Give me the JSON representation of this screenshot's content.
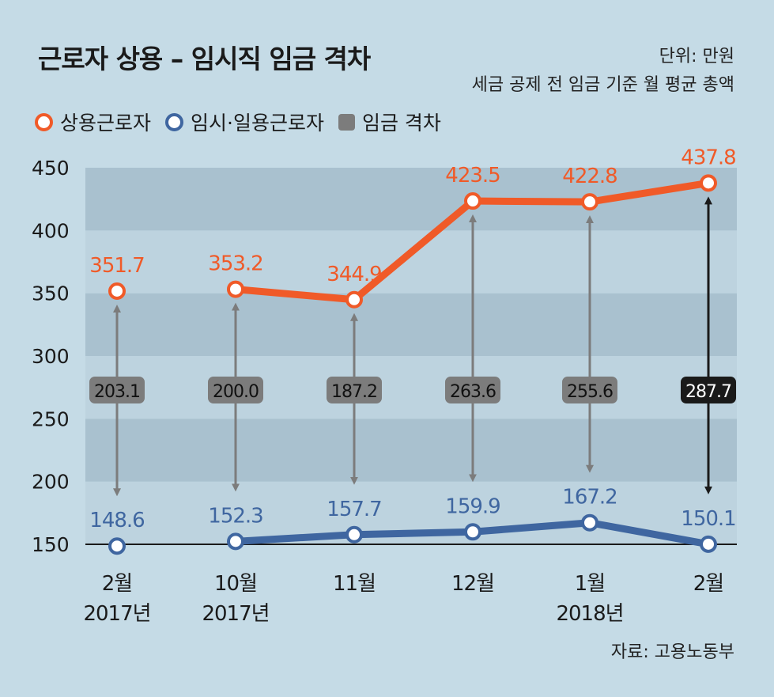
{
  "header": {
    "title": "근로자 상용 – 임시직 임금 격차",
    "unit_line1": "단위: 만원",
    "unit_line2": "세금 공제 전 임금 기준 월 평균 총액"
  },
  "legend": {
    "items": [
      {
        "label": "상용근로자",
        "color": "#f05a28",
        "shape": "circle"
      },
      {
        "label": "임시·일용근로자",
        "color": "#3f66a0",
        "shape": "circle"
      },
      {
        "label": "임금 격차",
        "color": "#7c7c7c",
        "shape": "square"
      }
    ]
  },
  "source": "자료: 고용노동부",
  "chart_data": {
    "type": "line",
    "categories": [
      {
        "line1": "2월",
        "line2": "2017년"
      },
      {
        "line1": "10월",
        "line2": "2017년"
      },
      {
        "line1": "11월",
        "line2": ""
      },
      {
        "line1": "12월",
        "line2": ""
      },
      {
        "line1": "1월",
        "line2": "2018년"
      },
      {
        "line1": "2월",
        "line2": ""
      }
    ],
    "series": [
      {
        "name": "상용근로자",
        "color": "#f05a28",
        "values": [
          351.7,
          353.2,
          344.9,
          423.5,
          422.8,
          437.8
        ],
        "labels": [
          "351.7",
          "353.2",
          "344.9",
          "423.5",
          "422.8",
          "437.8"
        ],
        "connected_from": 1
      },
      {
        "name": "임시·일용근로자",
        "color": "#3f66a0",
        "values": [
          148.6,
          152.3,
          157.7,
          159.9,
          167.2,
          150.1
        ],
        "labels": [
          "148.6",
          "152.3",
          "157.7",
          "159.9",
          "167.2",
          "150.1"
        ],
        "connected_from": 1
      }
    ],
    "gap": {
      "name": "임금 격차",
      "values": [
        203.1,
        200.0,
        187.2,
        263.6,
        255.6,
        287.7
      ],
      "labels": [
        "203.1",
        "200.0",
        "187.2",
        "263.6",
        "255.6",
        "287.7"
      ],
      "highlight_index": 5,
      "color": "#7c7c7c",
      "highlight_color": "#1a1a1a"
    },
    "y_ticks": [
      "150",
      "200",
      "250",
      "300",
      "350",
      "400",
      "450"
    ],
    "ylim": [
      150,
      450
    ],
    "grid": "alternating bands",
    "legend_position": "top-left"
  }
}
